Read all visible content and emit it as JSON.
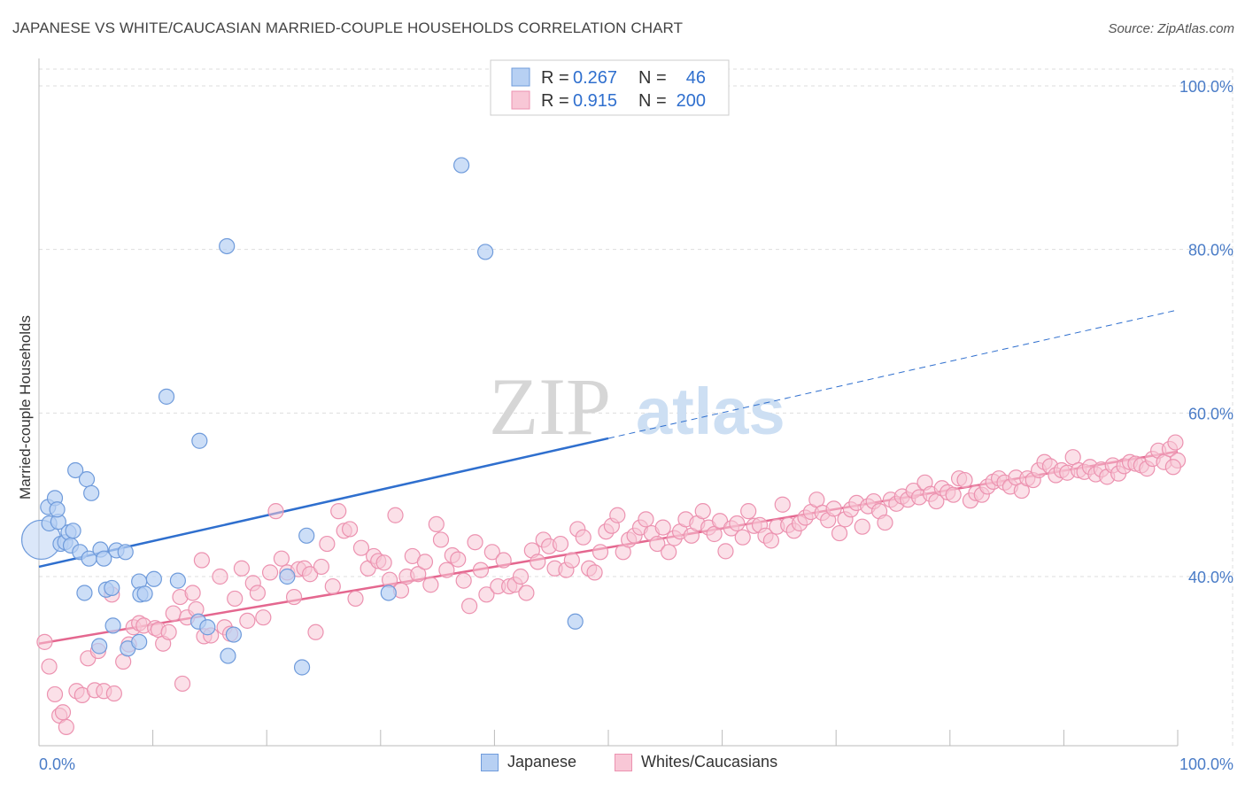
{
  "header": {
    "title": "JAPANESE VS WHITE/CAUCASIAN MARRIED-COUPLE HOUSEHOLDS CORRELATION CHART",
    "source": "Source: ZipAtlas.com"
  },
  "watermark": {
    "zip": "ZIP",
    "atlas": "atlas"
  },
  "colors": {
    "japanese_fill": "#b7d0f3",
    "japanese_stroke": "#6f9bdb",
    "japanese_line": "#2f6fce",
    "white_fill": "#f8c7d6",
    "white_stroke": "#ec92b0",
    "white_line": "#e4678f",
    "tick_label": "#4a7cc7",
    "grid": "#dddddd"
  },
  "legend": {
    "rows": [
      {
        "r_label": "R =",
        "r_value": "0.267",
        "n_label": "N =",
        "n_value": "46"
      },
      {
        "r_label": "R =",
        "r_value": "0.915",
        "n_label": "N =",
        "n_value": "200"
      }
    ]
  },
  "bottom_legend": {
    "japanese": "Japanese",
    "white": "Whites/Caucasians"
  },
  "chart_data": {
    "type": "scatter",
    "title": "JAPANESE VS WHITE/CAUCASIAN MARRIED-COUPLE HOUSEHOLDS CORRELATION CHART",
    "xlabel": "",
    "ylabel": "Married-couple Households",
    "xlim": [
      0,
      100
    ],
    "ylim": [
      20,
      100
    ],
    "x_tick_labels": [
      "0.0%",
      "100.0%"
    ],
    "y_ticks": [
      {
        "value": 100,
        "label": "100.0%"
      },
      {
        "value": 80,
        "label": "80.0%"
      },
      {
        "value": 60,
        "label": "60.0%"
      },
      {
        "value": 40,
        "label": "40.0%"
      }
    ],
    "grid": true,
    "legend_position": "top-center",
    "series": [
      {
        "name": "Japanese",
        "r": 0.267,
        "n": 46,
        "trend": {
          "x0": 0,
          "y0": 41.2,
          "x1": 50,
          "y1": 56.9,
          "dashed_to_x": 100,
          "dashed_to_y": 72.6
        },
        "points": [
          [
            0.2,
            44.5,
            "large"
          ],
          [
            0.8,
            48.5
          ],
          [
            0.9,
            46.5
          ],
          [
            1.4,
            49.6
          ],
          [
            1.7,
            46.7
          ],
          [
            1.6,
            48.2
          ],
          [
            1.9,
            44.0
          ],
          [
            2.3,
            44.2
          ],
          [
            2.6,
            45.4
          ],
          [
            3.0,
            45.6
          ],
          [
            2.8,
            43.8
          ],
          [
            3.2,
            53.0
          ],
          [
            3.6,
            43.0
          ],
          [
            4.2,
            51.9
          ],
          [
            4.4,
            42.2
          ],
          [
            4.6,
            50.2
          ],
          [
            5.4,
            43.3
          ],
          [
            5.7,
            42.2
          ],
          [
            5.9,
            38.4
          ],
          [
            6.4,
            38.6
          ],
          [
            4.0,
            38.0
          ],
          [
            6.8,
            43.2
          ],
          [
            7.6,
            43.0
          ],
          [
            8.8,
            39.4
          ],
          [
            8.9,
            37.8
          ],
          [
            9.3,
            37.9
          ],
          [
            10.1,
            39.7
          ],
          [
            11.2,
            62.0
          ],
          [
            12.2,
            39.5
          ],
          [
            14.1,
            56.6
          ],
          [
            14.0,
            34.5
          ],
          [
            14.8,
            33.8
          ],
          [
            16.5,
            80.4
          ],
          [
            16.6,
            30.3
          ],
          [
            17.1,
            32.9
          ],
          [
            21.8,
            40.0
          ],
          [
            23.1,
            28.9
          ],
          [
            23.5,
            45.0
          ],
          [
            30.7,
            38.0
          ],
          [
            37.1,
            90.3
          ],
          [
            39.2,
            79.7
          ],
          [
            47.1,
            34.5
          ],
          [
            6.5,
            34.0
          ],
          [
            7.8,
            31.2
          ],
          [
            8.8,
            32.0
          ],
          [
            5.3,
            31.5
          ]
        ]
      },
      {
        "name": "Whites/Caucasians",
        "r": 0.915,
        "n": 200,
        "trend": {
          "x0": 0,
          "y0": 31.8,
          "x1": 100,
          "y1": 55.3
        },
        "points": [
          [
            0.5,
            32.0
          ],
          [
            0.9,
            29.0
          ],
          [
            1.4,
            25.6
          ],
          [
            1.8,
            23.0
          ],
          [
            2.1,
            23.4
          ],
          [
            2.4,
            21.6
          ],
          [
            3.3,
            26.0
          ],
          [
            3.8,
            25.5
          ],
          [
            4.3,
            30.0
          ],
          [
            4.9,
            26.1
          ],
          [
            5.2,
            30.9
          ],
          [
            5.7,
            26.0
          ],
          [
            6.4,
            37.8
          ],
          [
            6.6,
            25.7
          ],
          [
            7.4,
            29.6
          ],
          [
            7.9,
            31.7
          ],
          [
            8.3,
            33.8
          ],
          [
            8.8,
            34.3
          ],
          [
            9.2,
            34.0
          ],
          [
            10.2,
            33.7
          ],
          [
            10.5,
            33.5
          ],
          [
            10.9,
            31.8
          ],
          [
            11.4,
            33.2
          ],
          [
            11.8,
            35.5
          ],
          [
            12.4,
            37.5
          ],
          [
            12.6,
            26.9
          ],
          [
            13.0,
            35.0
          ],
          [
            13.5,
            38.0
          ],
          [
            13.8,
            36.0
          ],
          [
            14.3,
            42.0
          ],
          [
            14.5,
            32.7
          ],
          [
            15.1,
            32.8
          ],
          [
            15.9,
            40.0
          ],
          [
            16.3,
            33.8
          ],
          [
            16.8,
            33.0
          ],
          [
            17.2,
            37.3
          ],
          [
            17.8,
            41.0
          ],
          [
            18.3,
            34.6
          ],
          [
            18.8,
            39.2
          ],
          [
            19.2,
            38.0
          ],
          [
            19.7,
            35.0
          ],
          [
            20.3,
            40.5
          ],
          [
            20.8,
            48.0
          ],
          [
            21.3,
            42.2
          ],
          [
            21.8,
            40.5
          ],
          [
            22.4,
            37.5
          ],
          [
            22.8,
            40.9
          ],
          [
            23.3,
            41.0
          ],
          [
            23.8,
            40.3
          ],
          [
            24.3,
            33.2
          ],
          [
            24.8,
            41.2
          ],
          [
            25.3,
            44.0
          ],
          [
            25.8,
            38.8
          ],
          [
            26.3,
            48.0
          ],
          [
            26.8,
            45.6
          ],
          [
            27.3,
            45.8
          ],
          [
            27.8,
            37.3
          ],
          [
            28.3,
            43.5
          ],
          [
            28.9,
            41.0
          ],
          [
            29.4,
            42.5
          ],
          [
            29.8,
            41.9
          ],
          [
            30.3,
            41.7
          ],
          [
            30.8,
            39.6
          ],
          [
            31.3,
            47.5
          ],
          [
            31.8,
            38.3
          ],
          [
            32.3,
            40.0
          ],
          [
            32.8,
            42.5
          ],
          [
            33.3,
            40.3
          ],
          [
            33.9,
            41.8
          ],
          [
            34.4,
            39.0
          ],
          [
            34.9,
            46.4
          ],
          [
            35.3,
            44.5
          ],
          [
            35.8,
            40.8
          ],
          [
            36.3,
            42.6
          ],
          [
            36.8,
            42.1
          ],
          [
            37.3,
            39.5
          ],
          [
            37.8,
            36.4
          ],
          [
            38.3,
            44.2
          ],
          [
            38.8,
            40.8
          ],
          [
            39.3,
            37.8
          ],
          [
            39.8,
            43.0
          ],
          [
            40.3,
            38.8
          ],
          [
            40.8,
            42.0
          ],
          [
            41.3,
            38.8
          ],
          [
            41.8,
            39.0
          ],
          [
            42.3,
            40.0
          ],
          [
            42.8,
            38.0
          ],
          [
            43.3,
            43.2
          ],
          [
            43.8,
            41.8
          ],
          [
            44.3,
            44.5
          ],
          [
            44.8,
            43.7
          ],
          [
            45.3,
            41.0
          ],
          [
            45.8,
            44.0
          ],
          [
            46.3,
            40.8
          ],
          [
            46.8,
            42.0
          ],
          [
            47.3,
            45.8
          ],
          [
            47.8,
            44.8
          ],
          [
            48.3,
            41.0
          ],
          [
            48.8,
            40.5
          ],
          [
            49.3,
            43.0
          ],
          [
            49.8,
            45.5
          ],
          [
            50.3,
            46.2
          ],
          [
            50.8,
            47.5
          ],
          [
            51.3,
            43.0
          ],
          [
            51.8,
            44.5
          ],
          [
            52.3,
            45.0
          ],
          [
            52.8,
            46.0
          ],
          [
            53.3,
            47.0
          ],
          [
            53.8,
            45.3
          ],
          [
            54.3,
            44.0
          ],
          [
            54.8,
            46.0
          ],
          [
            55.3,
            43.0
          ],
          [
            55.8,
            44.7
          ],
          [
            56.3,
            45.5
          ],
          [
            56.8,
            47.0
          ],
          [
            57.3,
            45.0
          ],
          [
            57.8,
            46.5
          ],
          [
            58.3,
            48.0
          ],
          [
            58.8,
            46.0
          ],
          [
            59.3,
            45.2
          ],
          [
            59.8,
            46.8
          ],
          [
            60.3,
            43.1
          ],
          [
            60.8,
            45.9
          ],
          [
            61.3,
            46.5
          ],
          [
            61.8,
            44.8
          ],
          [
            62.3,
            48.0
          ],
          [
            62.8,
            46.2
          ],
          [
            63.3,
            46.3
          ],
          [
            63.8,
            45.0
          ],
          [
            64.3,
            44.4
          ],
          [
            64.8,
            46.1
          ],
          [
            65.3,
            48.8
          ],
          [
            65.8,
            46.3
          ],
          [
            66.3,
            45.6
          ],
          [
            66.8,
            46.5
          ],
          [
            67.3,
            47.2
          ],
          [
            67.8,
            47.9
          ],
          [
            68.3,
            49.4
          ],
          [
            68.8,
            47.8
          ],
          [
            69.3,
            46.9
          ],
          [
            69.8,
            48.3
          ],
          [
            70.3,
            45.3
          ],
          [
            70.8,
            47.0
          ],
          [
            71.3,
            48.2
          ],
          [
            71.8,
            49.0
          ],
          [
            72.3,
            46.1
          ],
          [
            72.8,
            48.6
          ],
          [
            73.3,
            49.2
          ],
          [
            73.8,
            48.0
          ],
          [
            74.3,
            46.6
          ],
          [
            74.8,
            49.4
          ],
          [
            75.3,
            48.9
          ],
          [
            75.8,
            49.8
          ],
          [
            76.3,
            49.4
          ],
          [
            76.8,
            50.5
          ],
          [
            77.3,
            49.7
          ],
          [
            77.8,
            51.5
          ],
          [
            78.3,
            50.1
          ],
          [
            78.8,
            49.2
          ],
          [
            79.3,
            50.8
          ],
          [
            79.8,
            50.3
          ],
          [
            80.3,
            50.0
          ],
          [
            80.8,
            52.0
          ],
          [
            81.3,
            51.8
          ],
          [
            81.8,
            49.3
          ],
          [
            82.3,
            50.2
          ],
          [
            82.8,
            50.0
          ],
          [
            83.3,
            51.0
          ],
          [
            83.8,
            51.6
          ],
          [
            84.3,
            52.0
          ],
          [
            84.8,
            51.5
          ],
          [
            85.3,
            51.0
          ],
          [
            85.8,
            52.1
          ],
          [
            86.3,
            50.5
          ],
          [
            86.8,
            52.0
          ],
          [
            87.3,
            51.8
          ],
          [
            87.8,
            53.0
          ],
          [
            88.3,
            54.0
          ],
          [
            88.8,
            53.5
          ],
          [
            89.3,
            52.4
          ],
          [
            89.8,
            53.0
          ],
          [
            90.3,
            52.7
          ],
          [
            90.8,
            54.6
          ],
          [
            91.3,
            53.0
          ],
          [
            91.8,
            52.8
          ],
          [
            92.3,
            53.4
          ],
          [
            92.8,
            52.5
          ],
          [
            93.3,
            53.1
          ],
          [
            93.8,
            52.2
          ],
          [
            94.3,
            53.6
          ],
          [
            94.8,
            52.6
          ],
          [
            95.3,
            53.5
          ],
          [
            95.8,
            54.0
          ],
          [
            96.3,
            53.8
          ],
          [
            96.8,
            53.6
          ],
          [
            97.3,
            53.2
          ],
          [
            97.8,
            54.4
          ],
          [
            98.3,
            55.4
          ],
          [
            98.8,
            54.0
          ],
          [
            99.3,
            55.6
          ],
          [
            99.8,
            56.4
          ],
          [
            100.0,
            54.2
          ],
          [
            99.6,
            53.4
          ]
        ]
      }
    ]
  }
}
